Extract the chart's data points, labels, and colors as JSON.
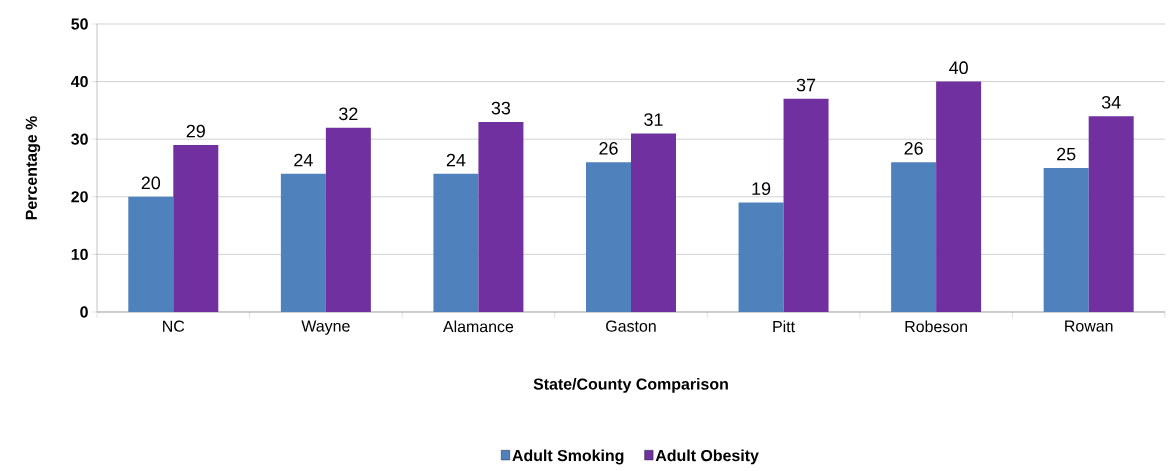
{
  "chart_data": {
    "type": "bar",
    "xlabel": "State/County Comparison",
    "ylabel": "Percentage  %",
    "categories": [
      "NC",
      "Wayne",
      "Alamance",
      "Gaston",
      "Pitt",
      "Robeson",
      "Rowan"
    ],
    "series": [
      {
        "name": "Adult Smoking",
        "color": "#4f81bd",
        "values": [
          20,
          24,
          24,
          26,
          19,
          26,
          25
        ]
      },
      {
        "name": "Adult Obesity",
        "color": "#7030a0",
        "values": [
          29,
          32,
          33,
          31,
          37,
          40,
          34
        ]
      }
    ],
    "ylim": [
      0,
      50
    ],
    "yticks": [
      0,
      10,
      20,
      30,
      40,
      50
    ],
    "grid": "y",
    "legend": "bottom",
    "data_labels": true
  }
}
